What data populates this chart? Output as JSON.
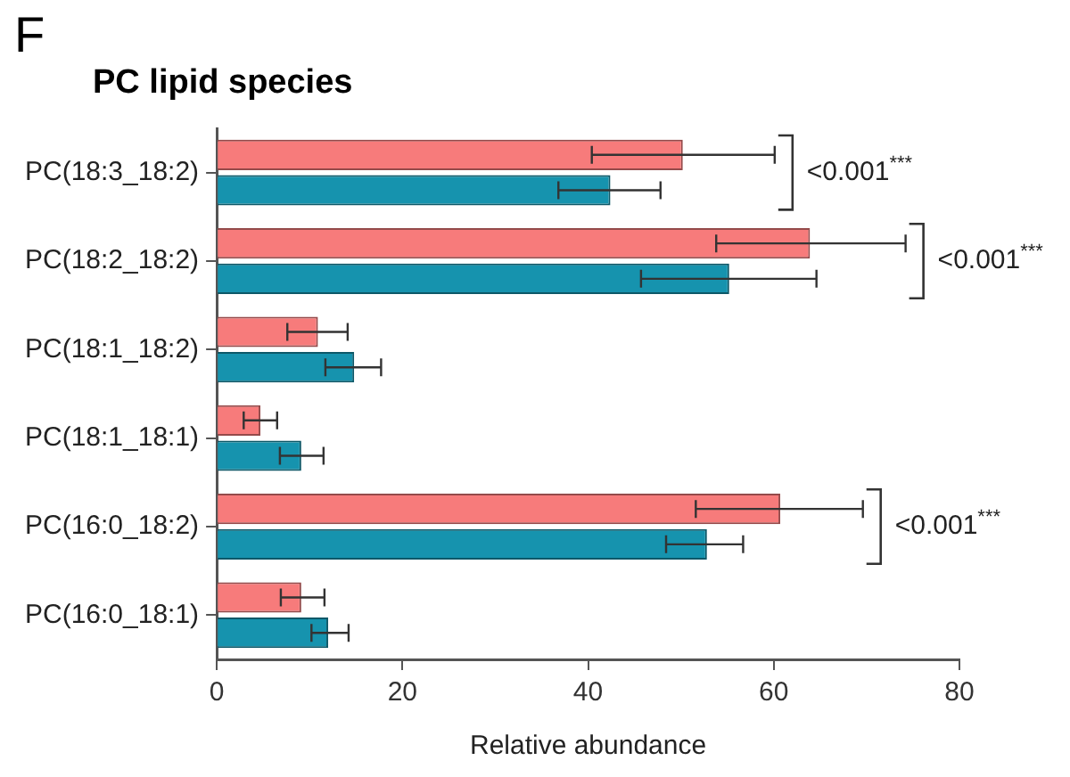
{
  "chart_data": {
    "type": "bar",
    "orientation": "horizontal",
    "title": "PC lipid species",
    "xlabel": "Relative abundance",
    "categories": [
      "PC(18:3_18:2)",
      "PC(18:2_18:2)",
      "PC(18:1_18:2)",
      "PC(18:1_18:1)",
      "PC(16:0_18:2)",
      "PC(16:0_18:1)"
    ],
    "series": [
      {
        "color": "#f77b7b",
        "values": [
          50.2,
          63.9,
          10.9,
          4.7,
          60.7,
          9.1
        ],
        "errors": [
          [
            40.4,
            60.1
          ],
          [
            53.8,
            74.2
          ],
          [
            7.6,
            14.1
          ],
          [
            2.9,
            6.5
          ],
          [
            51.6,
            69.6
          ],
          [
            6.9,
            11.6
          ]
        ]
      },
      {
        "color": "#1693ae",
        "values": [
          42.4,
          55.2,
          14.8,
          9.1,
          52.8,
          12.0
        ],
        "errors": [
          [
            36.8,
            47.8
          ],
          [
            45.7,
            64.6
          ],
          [
            11.7,
            17.7
          ],
          [
            6.8,
            11.5
          ],
          [
            48.4,
            56.7
          ],
          [
            10.2,
            14.2
          ]
        ]
      }
    ],
    "xlim": [
      0,
      80
    ],
    "xticks": [
      0,
      20,
      40,
      60,
      80
    ],
    "grid": false,
    "legend": false,
    "annotations": [
      "F",
      "<0.001$^{***}$",
      "<0.001$^{***}$",
      "<0.001$^{***}$"
    ]
  }
}
